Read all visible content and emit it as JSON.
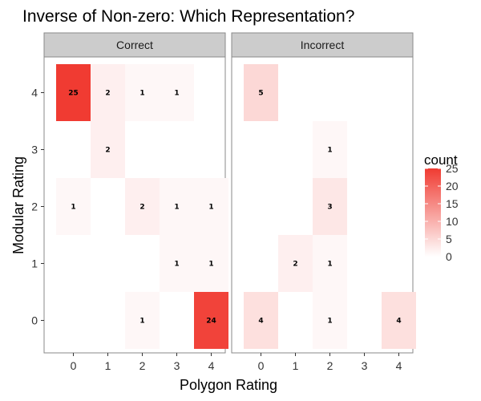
{
  "chart_data": {
    "type": "heatmap",
    "title": "Inverse of Non-zero: Which Representation?",
    "xlabel": "Polygon Rating",
    "ylabel": "Modular Rating",
    "x_ticks": [
      "0",
      "1",
      "2",
      "3",
      "4"
    ],
    "y_ticks": [
      "0",
      "1",
      "2",
      "3",
      "4"
    ],
    "fill_scale": {
      "title": "count",
      "low_color": "#ffffff",
      "high_color": "#f03b32",
      "min": 0,
      "max": 25,
      "breaks": [
        "0",
        "5",
        "10",
        "15",
        "20",
        "25"
      ]
    },
    "panels": [
      {
        "name": "Correct",
        "cells": [
          {
            "x": 0,
            "y": 4,
            "count": 25,
            "label": "25"
          },
          {
            "x": 1,
            "y": 4,
            "count": 2,
            "label": "2"
          },
          {
            "x": 2,
            "y": 4,
            "count": 1,
            "label": "1"
          },
          {
            "x": 3,
            "y": 4,
            "count": 1,
            "label": "1"
          },
          {
            "x": 1,
            "y": 3,
            "count": 2,
            "label": "2"
          },
          {
            "x": 0,
            "y": 2,
            "count": 1,
            "label": "1"
          },
          {
            "x": 2,
            "y": 2,
            "count": 2,
            "label": "2"
          },
          {
            "x": 3,
            "y": 2,
            "count": 1,
            "label": "1"
          },
          {
            "x": 4,
            "y": 2,
            "count": 1,
            "label": "1"
          },
          {
            "x": 3,
            "y": 1,
            "count": 1,
            "label": "1"
          },
          {
            "x": 4,
            "y": 1,
            "count": 1,
            "label": "1"
          },
          {
            "x": 2,
            "y": 0,
            "count": 1,
            "label": "1"
          },
          {
            "x": 4,
            "y": 0,
            "count": 24,
            "label": "24"
          }
        ]
      },
      {
        "name": "Incorrect",
        "cells": [
          {
            "x": 0,
            "y": 4,
            "count": 5,
            "label": "5"
          },
          {
            "x": 2,
            "y": 3,
            "count": 1,
            "label": "1"
          },
          {
            "x": 2,
            "y": 2,
            "count": 3,
            "label": "3"
          },
          {
            "x": 1,
            "y": 1,
            "count": 2,
            "label": "2"
          },
          {
            "x": 2,
            "y": 1,
            "count": 1,
            "label": "1"
          },
          {
            "x": 0,
            "y": 0,
            "count": 4,
            "label": "4"
          },
          {
            "x": 2,
            "y": 0,
            "count": 1,
            "label": "1"
          },
          {
            "x": 4,
            "y": 0,
            "count": 4,
            "label": "4"
          }
        ]
      }
    ]
  }
}
